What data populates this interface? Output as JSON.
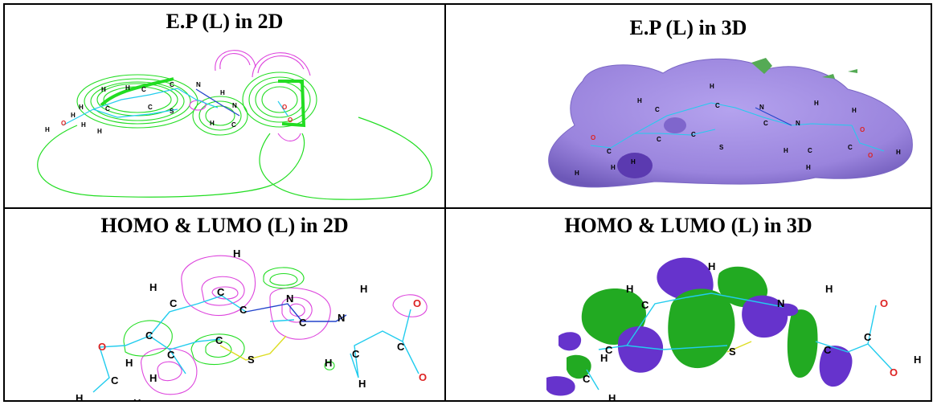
{
  "panels": {
    "ep_2d": {
      "title": "E.P (L) in 2D"
    },
    "ep_3d": {
      "title": "E.P (L) in 3D"
    },
    "homo_lumo_2d": {
      "title": "HOMO & LUMO (L) in 2D"
    },
    "homo_lumo_3d": {
      "title": "HOMO & LUMO (L) in 3D"
    }
  },
  "atom_labels": {
    "H": "H",
    "C": "C",
    "N": "N",
    "O": "O",
    "S": "S"
  },
  "colors": {
    "border": "#000000",
    "contour_green": "#22dd22",
    "contour_magenta": "#dd44dd",
    "bond_cyan": "#22ccee",
    "bond_blue": "#2244cc",
    "bond_yellow": "#dddd22",
    "oxygen_red": "#dd2222",
    "surface_violet": "#9a84dd",
    "lobe_purple": "#6633cc",
    "lobe_green": "#22aa22"
  }
}
